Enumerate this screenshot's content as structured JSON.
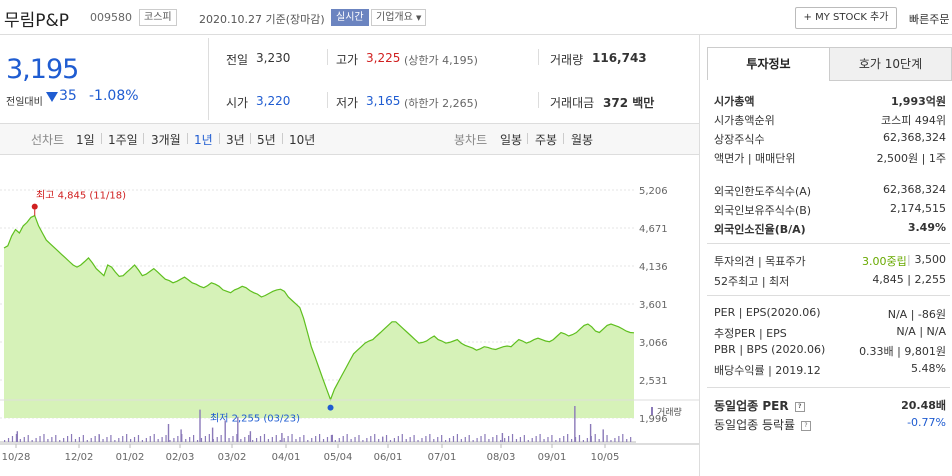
{
  "header": {
    "title": "무림P&P",
    "code": "009580",
    "market_tag": "코스피",
    "date_text": "2020.10.27 기준(장마감)",
    "live_tag": "실시간",
    "company_tag": "기업개요",
    "mystock_btn": "+ MY STOCK 추가",
    "quick_btn": "빠른주문"
  },
  "price": {
    "current": "3,195",
    "change_label": "전일대비",
    "change": "35",
    "change_pct": "-1.08%"
  },
  "quote": {
    "prev_label": "전일",
    "prev": "3,230",
    "high_label": "고가",
    "high": "3,225",
    "upper_limit": "(상한가 4,195)",
    "volume_label": "거래량",
    "volume": "116,743",
    "open_label": "시가",
    "open": "3,220",
    "low_label": "저가",
    "low": "3,165",
    "lower_limit": "(하한가 2,265)",
    "amount_label": "거래대금",
    "amount": "372",
    "amount_unit": "백만"
  },
  "toolbar": {
    "line_label": "선차트",
    "line_opts": [
      "1일",
      "1주일",
      "3개월",
      "1년",
      "3년",
      "5년",
      "10년"
    ],
    "candle_label": "봉차트",
    "candle_opts": [
      "일봉",
      "주봉",
      "월봉"
    ]
  },
  "chart_data": {
    "type": "area",
    "x_ticks": [
      "10/28",
      "12/02",
      "01/02",
      "02/03",
      "03/02",
      "04/01",
      "05/04",
      "06/01",
      "07/01",
      "08/03",
      "09/01",
      "10/05"
    ],
    "y_ticks": [
      5206,
      4671,
      4136,
      3601,
      3066,
      2531,
      1996
    ],
    "ylim": [
      1996,
      5206
    ],
    "high_annotation": "최고 4,845 (11/18)",
    "low_annotation": "최저 2,255 (03/23)",
    "volume_legend": "거래량",
    "series": [
      {
        "values": [
          4390,
          4420,
          4560,
          4650,
          4600,
          4700,
          4750,
          4820,
          4845,
          4700,
          4600,
          4500,
          4450,
          4400,
          4350,
          4300,
          4250,
          4200,
          4150,
          4120,
          4150,
          4200,
          4250,
          4180,
          4100,
          4050,
          4000,
          4150,
          4120,
          4050,
          3990,
          4000,
          4050,
          4100,
          4150,
          4080,
          4000,
          4020,
          4060,
          4100,
          4050,
          4000,
          3950,
          3930,
          3900,
          3920,
          3950,
          3980,
          3940,
          3900,
          3880,
          3850,
          3830,
          3860,
          3900,
          3880,
          3850,
          3800,
          3780,
          3760,
          3800,
          3820,
          3850,
          3830,
          3790,
          3760,
          3740,
          3700,
          3720,
          3750,
          3780,
          3800,
          3810,
          3780,
          3700,
          3650,
          3600,
          3550,
          3400,
          3200,
          3000,
          2850,
          2700,
          2550,
          2400,
          2255,
          2400,
          2500,
          2600,
          2700,
          2800,
          2900,
          2950,
          3000,
          3050,
          3080,
          3100,
          3150,
          3200,
          3250,
          3300,
          3350,
          3350,
          3300,
          3250,
          3200,
          3150,
          3100,
          3050,
          3060,
          3080,
          3120,
          3150,
          3100,
          3080,
          3050,
          3060,
          3080,
          3100,
          3050,
          3020,
          3000,
          2980,
          2950,
          2970,
          3000,
          2990,
          2970,
          2960,
          2980,
          3000,
          3010,
          3000,
          3050,
          3100,
          3080,
          3050,
          3070,
          3100,
          3120,
          3100,
          3080,
          3070,
          3100,
          3150,
          3200,
          3180,
          3150,
          3170,
          3200,
          3250,
          3300,
          3320,
          3280,
          3220,
          3200,
          3250,
          3300,
          3320,
          3300,
          3280,
          3250,
          3220,
          3200,
          3195
        ]
      }
    ],
    "volume_spikes": [
      [
        0.02,
        0.3
      ],
      [
        0.15,
        0.2
      ],
      [
        0.26,
        0.5
      ],
      [
        0.28,
        0.35
      ],
      [
        0.31,
        0.9
      ],
      [
        0.33,
        0.4
      ],
      [
        0.35,
        0.6
      ],
      [
        0.37,
        0.7
      ],
      [
        0.39,
        0.3
      ],
      [
        0.44,
        0.25
      ],
      [
        0.52,
        0.2
      ],
      [
        0.6,
        0.15
      ],
      [
        0.79,
        0.25
      ],
      [
        0.905,
        1.0
      ],
      [
        0.93,
        0.5
      ],
      [
        0.95,
        0.35
      ]
    ]
  },
  "invest": {
    "tab_on": "투자정보",
    "tab_off": "호가 10단계",
    "rows1": [
      {
        "l": "시가총액",
        "r": "1,993억원",
        "bold": true
      },
      {
        "l": "시가총액순위",
        "r": "코스피 494위"
      },
      {
        "l": "상장주식수",
        "r": "62,368,324"
      },
      {
        "l": "액면가 | 매매단위",
        "r": "2,500원 | 1주"
      }
    ],
    "rows2": [
      {
        "l": "외국인한도주식수(A)",
        "r": "62,368,324"
      },
      {
        "l": "외국인보유주식수(B)",
        "r": "2,174,515"
      },
      {
        "l": "외국인소진율(B/A)",
        "r": "3.49%",
        "bold": true
      }
    ],
    "opinion_label": "투자의견 | 목표주가",
    "opinion_val": "3.00중립",
    "target_val": "3,500",
    "w52_label": "52주최고 | 최저",
    "w52_val": "4,845 | 2,255",
    "rows4": [
      {
        "l": "PER | EPS(2020.06)",
        "r": "N/A | -86원"
      },
      {
        "l": "추정PER | EPS",
        "r": "N/A | N/A"
      },
      {
        "l": "PBR | BPS (2020.06)",
        "r": "0.33배 | 9,801원"
      },
      {
        "l": "배당수익률 | 2019.12",
        "r": "5.48%"
      }
    ],
    "industry_per_label": "동일업종 PER",
    "industry_per": "20.48배",
    "industry_chg_label": "동일업종 등락률",
    "industry_chg": "-0.77%"
  },
  "colors": {
    "up": "#d02020",
    "down": "#1f5cd1",
    "area_fill": "#d6f2b8",
    "area_line": "#5fbf1f"
  }
}
